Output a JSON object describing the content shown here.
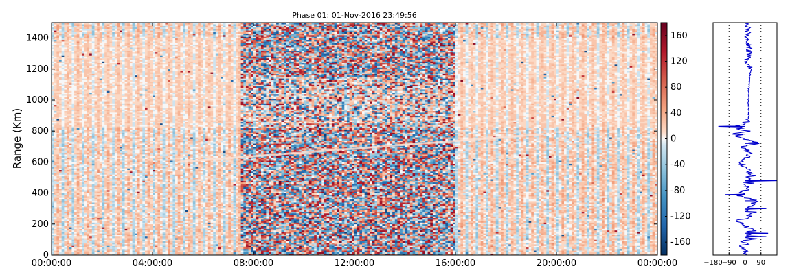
{
  "chart_data": [
    {
      "type": "heatmap",
      "title": "Phase 01: 01-Nov-2016 23:49:56",
      "xlabel": "",
      "ylabel": "Range (Km)",
      "x_ticks": [
        "00:00:00",
        "04:00:00",
        "08:00:00",
        "12:00:00",
        "16:00:00",
        "20:00:00",
        "00:00:00"
      ],
      "xlim_hours": [
        0,
        24
      ],
      "ylim": [
        0,
        1500
      ],
      "y_ticks": [
        0,
        200,
        400,
        600,
        800,
        1000,
        1200,
        1400
      ],
      "colorbar": {
        "range": [
          -180,
          180
        ],
        "ticks": [
          -160,
          -120,
          -80,
          -40,
          0,
          40,
          80,
          120,
          160
        ],
        "colormap": "RdBu_r",
        "low_color": "#053061",
        "mid_color": "#f7f7f7",
        "high_color": "#67001f"
      },
      "features": {
        "noisy_time_span_hours": [
          7.5,
          16.0
        ],
        "clean_band_range_km": [
          820,
          1500
        ],
        "artifact_line_km": [
          600,
          780
        ]
      }
    },
    {
      "type": "line",
      "xlabel": "",
      "ylabel": "",
      "x_ticks": [
        -180,
        -90,
        0,
        90
      ],
      "xlim": [
        -180,
        180
      ],
      "ylim": [
        0,
        1500
      ],
      "reference_lines": [
        -90,
        90
      ],
      "color": "#0000cc",
      "profile": [
        {
          "y": 0,
          "x": 0
        },
        {
          "y": 30,
          "x": 10
        },
        {
          "y": 60,
          "x": -30
        },
        {
          "y": 70,
          "x": 20
        },
        {
          "y": 90,
          "x": -10
        },
        {
          "y": 120,
          "x": 120
        },
        {
          "y": 140,
          "x": 130
        },
        {
          "y": 160,
          "x": 40
        },
        {
          "y": 200,
          "x": -10
        },
        {
          "y": 220,
          "x": -50
        },
        {
          "y": 240,
          "x": 20
        },
        {
          "y": 270,
          "x": 30
        },
        {
          "y": 300,
          "x": 120
        },
        {
          "y": 320,
          "x": 40
        },
        {
          "y": 350,
          "x": 60
        },
        {
          "y": 380,
          "x": -20
        },
        {
          "y": 390,
          "x": -110
        },
        {
          "y": 420,
          "x": 20
        },
        {
          "y": 460,
          "x": 10
        },
        {
          "y": 480,
          "x": 180
        },
        {
          "y": 520,
          "x": 30
        },
        {
          "y": 560,
          "x": 10
        },
        {
          "y": 600,
          "x": -30
        },
        {
          "y": 640,
          "x": 20
        },
        {
          "y": 660,
          "x": 30
        },
        {
          "y": 700,
          "x": -20
        },
        {
          "y": 720,
          "x": 80
        },
        {
          "y": 760,
          "x": -30
        },
        {
          "y": 780,
          "x": -70
        },
        {
          "y": 800,
          "x": 30
        },
        {
          "y": 830,
          "x": -150
        },
        {
          "y": 840,
          "x": 0
        },
        {
          "y": 880,
          "x": 20
        },
        {
          "y": 950,
          "x": 20
        },
        {
          "y": 1050,
          "x": 20
        },
        {
          "y": 1150,
          "x": 25
        },
        {
          "y": 1200,
          "x": 35
        },
        {
          "y": 1250,
          "x": 10
        },
        {
          "y": 1330,
          "x": 25
        },
        {
          "y": 1400,
          "x": 10
        },
        {
          "y": 1460,
          "x": 20
        },
        {
          "y": 1500,
          "x": 15
        }
      ]
    }
  ]
}
